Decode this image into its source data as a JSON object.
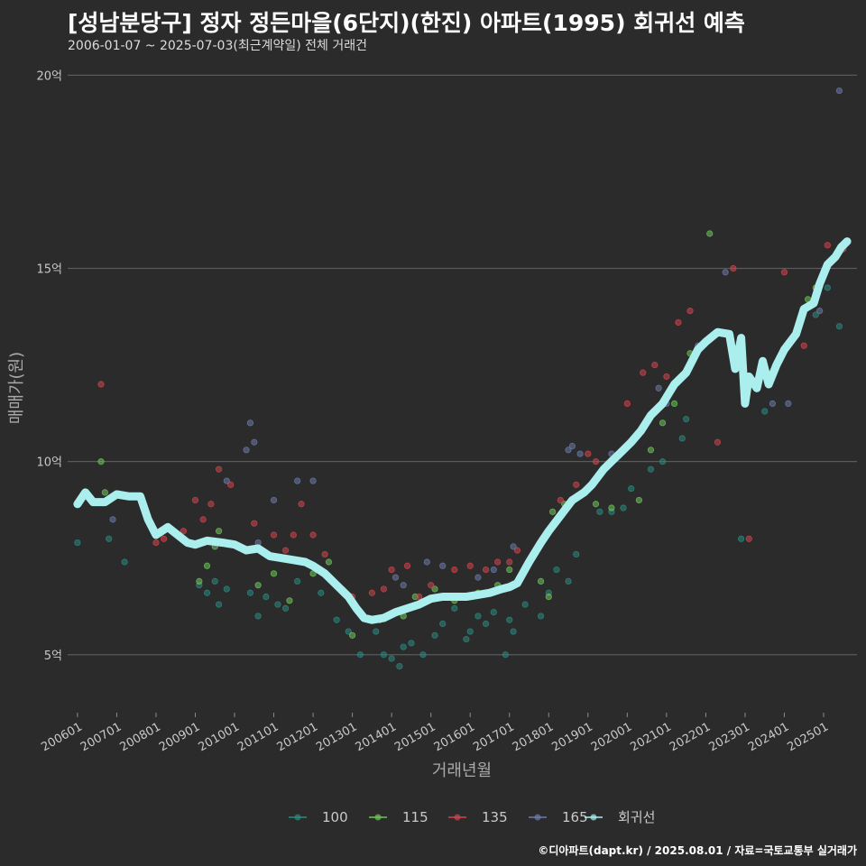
{
  "header": {
    "title": "[성남분당구] 정자 정든마을(6단지)(한진) 아파트(1995) 회귀선 예측",
    "subtitle": "2006-01-07 ~ 2025-07-03(최근계약일) 전체 거래건"
  },
  "footer": {
    "credit": "©디아파트(dapt.kr) / 2025.08.01 / 자료=국토교통부 실거래가"
  },
  "colors": {
    "background": "#2b2b2c",
    "grid": "#5a5a5c",
    "s100": "#2a8a80",
    "s115": "#6ec45a",
    "s135": "#d0454d",
    "s165": "#6c7aa8",
    "regression": "#aaeeee"
  },
  "chart_data": {
    "type": "scatter",
    "title": "[성남분당구] 정자 정든마을(6단지)(한진) 아파트(1995) 회귀선 예측",
    "xlabel": "거래년월",
    "ylabel": "매매가(원)",
    "ylim": [
      3.5,
      20.5
    ],
    "xlim": [
      2005.75,
      2025.85
    ],
    "y_ticks": [
      5,
      10,
      15,
      20
    ],
    "y_tick_labels": [
      "5억",
      "10억",
      "15억",
      "20억"
    ],
    "x_tick_values": [
      2006,
      2007,
      2008,
      2009,
      2010,
      2011,
      2012,
      2013,
      2014,
      2015,
      2016,
      2017,
      2018,
      2019,
      2020,
      2021,
      2022,
      2023,
      2024,
      2025
    ],
    "x_tick_labels": [
      "200601",
      "200701",
      "200801",
      "200901",
      "201001",
      "201101",
      "201201",
      "201301",
      "201401",
      "201501",
      "201601",
      "201701",
      "201801",
      "201901",
      "202001",
      "202101",
      "202201",
      "202301",
      "202401",
      "202501"
    ],
    "legend": {
      "title": "",
      "position": "bottom",
      "items": [
        "100",
        "115",
        "135",
        "165",
        "회귀선"
      ]
    },
    "series": [
      {
        "name": "100",
        "points": [
          [
            2006.0,
            7.9
          ],
          [
            2006.8,
            8.0
          ],
          [
            2007.2,
            7.4
          ],
          [
            2009.1,
            6.8
          ],
          [
            2009.3,
            6.6
          ],
          [
            2009.5,
            6.9
          ],
          [
            2009.6,
            6.3
          ],
          [
            2009.8,
            6.7
          ],
          [
            2010.4,
            6.6
          ],
          [
            2010.6,
            6.0
          ],
          [
            2010.8,
            6.5
          ],
          [
            2011.1,
            6.3
          ],
          [
            2011.3,
            6.2
          ],
          [
            2011.6,
            6.9
          ],
          [
            2012.2,
            6.6
          ],
          [
            2012.6,
            5.9
          ],
          [
            2012.9,
            5.6
          ],
          [
            2013.2,
            5.0
          ],
          [
            2013.6,
            5.6
          ],
          [
            2013.8,
            5.0
          ],
          [
            2014.0,
            4.9
          ],
          [
            2014.2,
            4.7
          ],
          [
            2014.3,
            5.2
          ],
          [
            2014.5,
            5.3
          ],
          [
            2014.8,
            5.0
          ],
          [
            2015.1,
            5.5
          ],
          [
            2015.3,
            5.8
          ],
          [
            2015.6,
            6.2
          ],
          [
            2015.9,
            5.4
          ],
          [
            2016.0,
            5.6
          ],
          [
            2016.2,
            6.0
          ],
          [
            2016.4,
            5.8
          ],
          [
            2016.6,
            6.1
          ],
          [
            2016.9,
            5.0
          ],
          [
            2017.1,
            5.6
          ],
          [
            2017.0,
            5.9
          ],
          [
            2017.4,
            6.3
          ],
          [
            2017.8,
            6.0
          ],
          [
            2018.0,
            6.6
          ],
          [
            2018.2,
            7.2
          ],
          [
            2018.5,
            6.9
          ],
          [
            2018.7,
            7.6
          ],
          [
            2019.3,
            8.7
          ],
          [
            2019.6,
            8.7
          ],
          [
            2019.9,
            8.8
          ],
          [
            2020.1,
            9.3
          ],
          [
            2020.6,
            9.8
          ],
          [
            2020.9,
            10.0
          ],
          [
            2021.4,
            10.6
          ],
          [
            2021.5,
            11.1
          ],
          [
            2022.9,
            8.0
          ],
          [
            2023.5,
            11.3
          ],
          [
            2024.2,
            13.2
          ],
          [
            2024.8,
            13.8
          ],
          [
            2025.1,
            14.5
          ],
          [
            2025.4,
            13.5
          ]
        ]
      },
      {
        "name": "115",
        "points": [
          [
            2006.6,
            10.0
          ],
          [
            2006.7,
            9.2
          ],
          [
            2009.1,
            6.9
          ],
          [
            2009.3,
            7.3
          ],
          [
            2009.5,
            7.8
          ],
          [
            2009.6,
            8.2
          ],
          [
            2010.6,
            6.8
          ],
          [
            2011.0,
            7.1
          ],
          [
            2011.4,
            6.4
          ],
          [
            2012.0,
            7.1
          ],
          [
            2012.4,
            7.4
          ],
          [
            2013.0,
            5.5
          ],
          [
            2013.7,
            5.9
          ],
          [
            2014.3,
            6.0
          ],
          [
            2014.6,
            6.5
          ],
          [
            2015.1,
            6.7
          ],
          [
            2015.6,
            6.4
          ],
          [
            2016.2,
            6.6
          ],
          [
            2016.7,
            6.8
          ],
          [
            2017.0,
            7.2
          ],
          [
            2017.3,
            7.0
          ],
          [
            2017.8,
            6.9
          ],
          [
            2018.0,
            6.5
          ],
          [
            2018.1,
            8.7
          ],
          [
            2018.4,
            8.9
          ],
          [
            2019.2,
            8.9
          ],
          [
            2019.6,
            8.8
          ],
          [
            2020.3,
            9.0
          ],
          [
            2020.6,
            10.3
          ],
          [
            2020.9,
            11.0
          ],
          [
            2021.2,
            11.5
          ],
          [
            2021.6,
            12.8
          ],
          [
            2022.1,
            15.9
          ],
          [
            2022.8,
            12.8
          ],
          [
            2024.6,
            14.2
          ],
          [
            2024.8,
            14.5
          ]
        ]
      },
      {
        "name": "135",
        "points": [
          [
            2006.6,
            12.0
          ],
          [
            2008.0,
            7.9
          ],
          [
            2008.2,
            8.0
          ],
          [
            2008.7,
            8.2
          ],
          [
            2009.0,
            9.0
          ],
          [
            2009.2,
            8.5
          ],
          [
            2009.4,
            8.9
          ],
          [
            2009.6,
            9.8
          ],
          [
            2009.9,
            9.4
          ],
          [
            2010.5,
            8.4
          ],
          [
            2011.0,
            8.1
          ],
          [
            2011.3,
            7.7
          ],
          [
            2011.5,
            8.1
          ],
          [
            2011.7,
            8.9
          ],
          [
            2012.0,
            8.1
          ],
          [
            2012.3,
            7.6
          ],
          [
            2013.0,
            6.5
          ],
          [
            2013.5,
            6.6
          ],
          [
            2013.8,
            6.7
          ],
          [
            2014.0,
            7.2
          ],
          [
            2014.4,
            7.3
          ],
          [
            2014.7,
            6.5
          ],
          [
            2015.0,
            6.8
          ],
          [
            2015.6,
            7.2
          ],
          [
            2016.0,
            7.3
          ],
          [
            2016.4,
            7.2
          ],
          [
            2016.7,
            7.4
          ],
          [
            2017.0,
            7.4
          ],
          [
            2017.2,
            7.7
          ],
          [
            2018.3,
            9.0
          ],
          [
            2018.7,
            9.4
          ],
          [
            2019.0,
            10.2
          ],
          [
            2019.2,
            10.0
          ],
          [
            2019.6,
            10.0
          ],
          [
            2020.0,
            11.5
          ],
          [
            2020.4,
            12.3
          ],
          [
            2020.7,
            12.5
          ],
          [
            2021.0,
            12.2
          ],
          [
            2021.3,
            13.6
          ],
          [
            2021.6,
            13.9
          ],
          [
            2022.3,
            10.5
          ],
          [
            2022.7,
            15.0
          ],
          [
            2023.1,
            8.0
          ],
          [
            2024.0,
            14.9
          ],
          [
            2024.5,
            13.0
          ],
          [
            2025.1,
            15.6
          ],
          [
            2025.5,
            15.5
          ]
        ]
      },
      {
        "name": "165",
        "points": [
          [
            2006.9,
            8.5
          ],
          [
            2009.8,
            9.5
          ],
          [
            2010.3,
            10.3
          ],
          [
            2010.4,
            11.0
          ],
          [
            2010.5,
            10.5
          ],
          [
            2010.6,
            7.9
          ],
          [
            2011.0,
            9.0
          ],
          [
            2011.6,
            9.5
          ],
          [
            2012.0,
            9.5
          ],
          [
            2014.1,
            7.0
          ],
          [
            2014.3,
            6.8
          ],
          [
            2014.9,
            7.4
          ],
          [
            2015.3,
            7.3
          ],
          [
            2016.2,
            7.0
          ],
          [
            2016.6,
            7.2
          ],
          [
            2017.1,
            7.8
          ],
          [
            2018.5,
            10.3
          ],
          [
            2018.6,
            10.4
          ],
          [
            2018.8,
            10.2
          ],
          [
            2019.6,
            10.2
          ],
          [
            2020.8,
            11.9
          ],
          [
            2021.0,
            11.5
          ],
          [
            2021.8,
            13.0
          ],
          [
            2022.5,
            14.9
          ],
          [
            2023.7,
            11.5
          ],
          [
            2024.1,
            11.5
          ],
          [
            2024.9,
            13.9
          ],
          [
            2025.4,
            19.6
          ]
        ]
      }
    ],
    "regression": [
      [
        2006.0,
        8.9
      ],
      [
        2006.2,
        9.2
      ],
      [
        2006.4,
        8.95
      ],
      [
        2006.7,
        8.95
      ],
      [
        2007.0,
        9.15
      ],
      [
        2007.3,
        9.1
      ],
      [
        2007.6,
        9.1
      ],
      [
        2007.8,
        8.5
      ],
      [
        2008.0,
        8.1
      ],
      [
        2008.3,
        8.3
      ],
      [
        2008.55,
        8.1
      ],
      [
        2008.8,
        7.9
      ],
      [
        2009.0,
        7.85
      ],
      [
        2009.3,
        7.95
      ],
      [
        2009.7,
        7.9
      ],
      [
        2010.0,
        7.85
      ],
      [
        2010.3,
        7.7
      ],
      [
        2010.6,
        7.75
      ],
      [
        2010.9,
        7.55
      ],
      [
        2011.2,
        7.5
      ],
      [
        2011.5,
        7.45
      ],
      [
        2011.8,
        7.4
      ],
      [
        2012.0,
        7.3
      ],
      [
        2012.3,
        7.1
      ],
      [
        2012.6,
        6.8
      ],
      [
        2012.9,
        6.5
      ],
      [
        2013.1,
        6.2
      ],
      [
        2013.3,
        5.95
      ],
      [
        2013.5,
        5.9
      ],
      [
        2013.8,
        5.95
      ],
      [
        2014.1,
        6.1
      ],
      [
        2014.4,
        6.2
      ],
      [
        2014.7,
        6.3
      ],
      [
        2015.0,
        6.45
      ],
      [
        2015.3,
        6.5
      ],
      [
        2015.6,
        6.5
      ],
      [
        2015.9,
        6.5
      ],
      [
        2016.2,
        6.55
      ],
      [
        2016.5,
        6.6
      ],
      [
        2016.8,
        6.7
      ],
      [
        2017.0,
        6.75
      ],
      [
        2017.2,
        6.85
      ],
      [
        2017.5,
        7.4
      ],
      [
        2017.8,
        7.9
      ],
      [
        2018.0,
        8.2
      ],
      [
        2018.3,
        8.6
      ],
      [
        2018.6,
        9.0
      ],
      [
        2018.9,
        9.2
      ],
      [
        2019.1,
        9.4
      ],
      [
        2019.4,
        9.8
      ],
      [
        2019.6,
        10.0
      ],
      [
        2019.9,
        10.3
      ],
      [
        2020.1,
        10.5
      ],
      [
        2020.35,
        10.8
      ],
      [
        2020.6,
        11.2
      ],
      [
        2020.9,
        11.5
      ],
      [
        2021.2,
        12.0
      ],
      [
        2021.5,
        12.3
      ],
      [
        2021.8,
        12.9
      ],
      [
        2022.0,
        13.1
      ],
      [
        2022.3,
        13.35
      ],
      [
        2022.6,
        13.3
      ],
      [
        2022.75,
        12.4
      ],
      [
        2022.9,
        13.2
      ],
      [
        2023.0,
        11.5
      ],
      [
        2023.1,
        12.2
      ],
      [
        2023.3,
        11.9
      ],
      [
        2023.45,
        12.6
      ],
      [
        2023.6,
        12.0
      ],
      [
        2023.8,
        12.5
      ],
      [
        2024.0,
        12.9
      ],
      [
        2024.3,
        13.3
      ],
      [
        2024.5,
        13.95
      ],
      [
        2024.75,
        14.1
      ],
      [
        2024.9,
        14.6
      ],
      [
        2025.1,
        15.1
      ],
      [
        2025.3,
        15.3
      ],
      [
        2025.45,
        15.55
      ],
      [
        2025.6,
        15.7
      ]
    ]
  }
}
